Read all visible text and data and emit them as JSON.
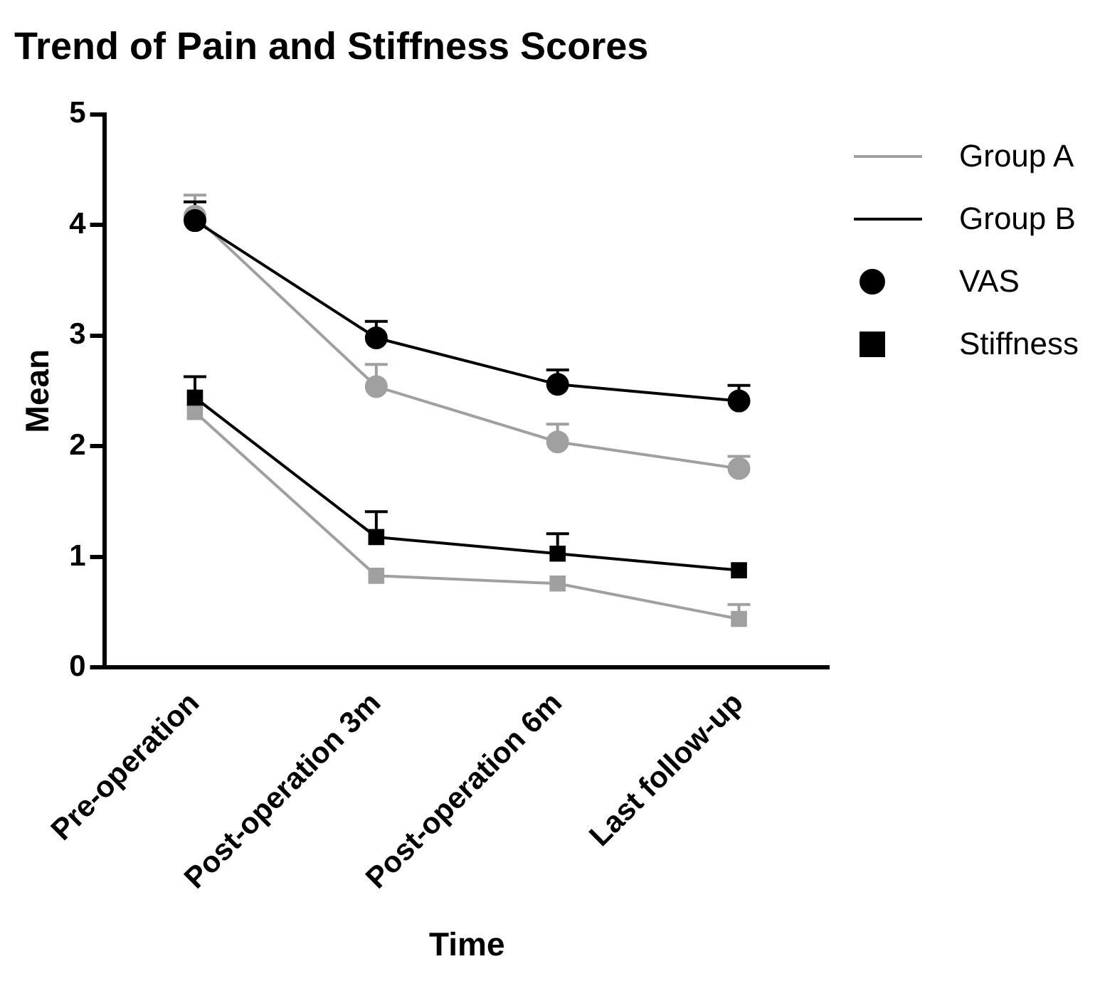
{
  "chart_data": {
    "type": "line",
    "title": "Trend of Pain and Stiffness Scores",
    "xlabel": "Time",
    "ylabel": "Mean",
    "categories": [
      "Pre-operation",
      "Post-operation 3m",
      "Post-operation 6m",
      "Last follow-up"
    ],
    "series": [
      {
        "name": "Group A",
        "color": "#a0a0a0",
        "marker": "circle",
        "values": [
          4.08,
          2.54,
          2.04,
          1.8
        ],
        "errors": [
          [
            4.08,
            4.27
          ],
          [
            2.54,
            2.74
          ],
          [
            2.04,
            2.2
          ],
          [
            1.8,
            1.91
          ]
        ]
      },
      {
        "name": "Group B",
        "color": "#000000",
        "marker": "circle",
        "values": [
          4.04,
          2.98,
          2.56,
          2.41
        ],
        "errors": [
          [
            4.04,
            4.21
          ],
          [
            2.98,
            3.13
          ],
          [
            2.56,
            2.69
          ],
          [
            2.41,
            2.55
          ]
        ]
      },
      {
        "color": "#a0a0a0",
        "marker": "square",
        "values": [
          2.31,
          0.83,
          0.76,
          0.44
        ],
        "errors": [
          null,
          null,
          null,
          [
            0.44,
            0.57
          ]
        ]
      },
      {
        "color": "#000000",
        "marker": "square",
        "values": [
          2.44,
          1.18,
          1.03,
          0.88
        ],
        "errors": [
          [
            2.44,
            2.63
          ],
          [
            1.18,
            1.41
          ],
          [
            1.03,
            1.21
          ],
          null
        ]
      }
    ],
    "annotations": [
      "VAS",
      "Stiffness"
    ],
    "ylim": [
      0,
      5
    ],
    "yticks": [
      0,
      1,
      2,
      3,
      4,
      5
    ],
    "grid": false,
    "legend": "top right",
    "line_style": "solid"
  }
}
